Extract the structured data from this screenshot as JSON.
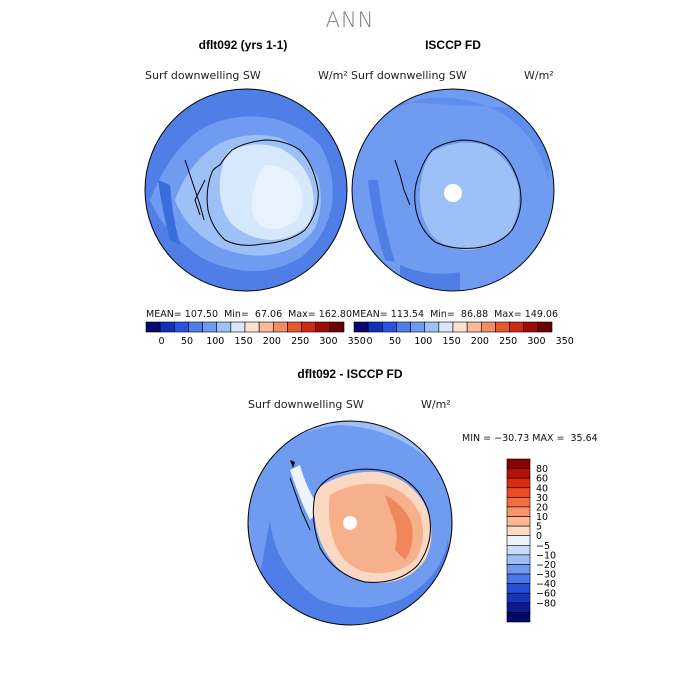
{
  "page": {
    "main_title": "ANN"
  },
  "colors": {
    "ocean_low": "#4f7fe6",
    "ocean_mid": "#6f9cf0",
    "ocean_light": "#9dc1f7",
    "ice_pale": "#d6e8fb",
    "ice_white": "#eef5ff",
    "diff_warm1": "#fbd8c2",
    "diff_warm2": "#f7b08c",
    "diff_warm3": "#f0865c",
    "coast": "#000000"
  },
  "panels": {
    "left": {
      "title": "dflt092 (yrs 1-1)",
      "field": "Surf downwelling SW",
      "unit": "W/m²",
      "stats": "MEAN= 107.50  Min=  67.06  Max= 162.80",
      "map_label": "dflt092 surface downwelling SW map"
    },
    "right": {
      "title": "ISCCP FD",
      "field": "Surf downwelling SW",
      "unit": "W/m²",
      "stats": "MEAN= 113.54  Min=  86.88  Max= 149.06",
      "map_label": "ISCCP FD surface downwelling SW map"
    },
    "diff": {
      "title": "dflt092 - ISCCP FD",
      "field": "Surf downwelling SW",
      "unit": "W/m²",
      "minmax": "MIN = −30.73 MAX =  35.64",
      "map_label": "difference map"
    }
  },
  "chart_data": [
    {
      "type": "heatmap",
      "title": "dflt092 (yrs 1-1)",
      "variable": "Surf downwelling SW",
      "units": "W/m²",
      "mean": 107.5,
      "min": 67.06,
      "max": 162.8,
      "colorbar_ticks": [
        "0",
        "50",
        "100",
        "150",
        "200",
        "250",
        "300",
        "350"
      ],
      "colorbar_colors": [
        "#08086b",
        "#1230b5",
        "#2a52e0",
        "#4f7fe6",
        "#6f9cf0",
        "#9dc1f7",
        "#d6e8fb",
        "#fde2cf",
        "#f9b99a",
        "#f38d64",
        "#e5592f",
        "#cc2a14",
        "#9e0a08",
        "#6b0000"
      ]
    },
    {
      "type": "heatmap",
      "title": "ISCCP FD",
      "variable": "Surf downwelling SW",
      "units": "W/m²",
      "mean": 113.54,
      "min": 86.88,
      "max": 149.06,
      "colorbar_ticks": [
        "0",
        "50",
        "100",
        "150",
        "200",
        "250",
        "300",
        "350"
      ],
      "colorbar_colors": [
        "#08086b",
        "#1230b5",
        "#2a52e0",
        "#4f7fe6",
        "#6f9cf0",
        "#9dc1f7",
        "#d6e8fb",
        "#fde2cf",
        "#f9b99a",
        "#f38d64",
        "#e5592f",
        "#cc2a14",
        "#9e0a08",
        "#6b0000"
      ]
    },
    {
      "type": "heatmap",
      "title": "dflt092 - ISCCP FD",
      "variable": "Surf downwelling SW",
      "units": "W/m²",
      "min": -30.73,
      "max": 35.64,
      "colorbar_levels": [
        "80",
        "60",
        "40",
        "30",
        "20",
        "10",
        "5",
        "0",
        "−5",
        "−10",
        "−20",
        "−30",
        "−40",
        "−60",
        "−80"
      ],
      "colorbar_colors": [
        "#8b0000",
        "#b81004",
        "#dc2c0e",
        "#ee4a22",
        "#f46c42",
        "#f8946a",
        "#fbb894",
        "#fcdcc4",
        "#eef3fb",
        "#c9dcf6",
        "#9dc1f7",
        "#6f9cf0",
        "#4a78e8",
        "#2450d8",
        "#1a34b8",
        "#0c1a8c",
        "#04066a"
      ]
    }
  ]
}
